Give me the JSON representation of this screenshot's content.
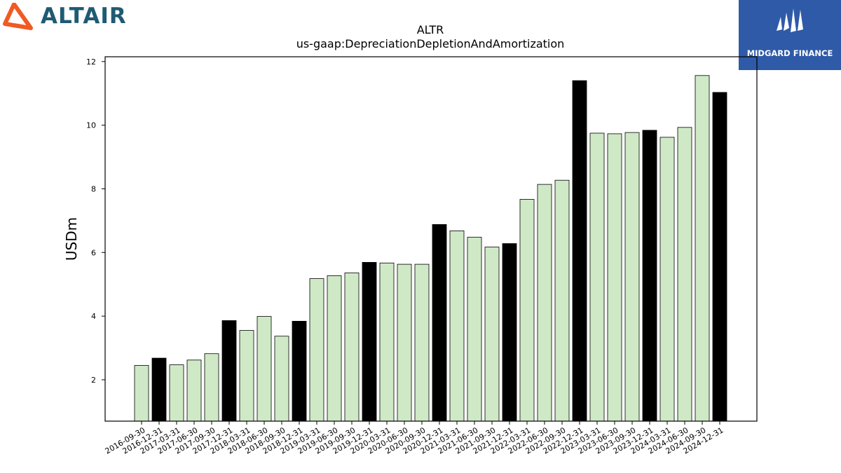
{
  "logos": {
    "left_wordmark": "ALTAIR",
    "right_caption": "MIDGARD FINANCE"
  },
  "colors": {
    "bar_light": "#cfe9c6",
    "bar_dark": "#000000",
    "bar_edge": "#000000",
    "altair_orange": "#f15a22",
    "altair_text": "#1f5a73",
    "midgard_bg": "#2f5aa8"
  },
  "chart_data": {
    "type": "bar",
    "title": "ALTR",
    "subtitle": "us-gaap:DepreciationDepletionAndAmortization",
    "xlabel": "",
    "ylabel": "USDm",
    "ylim": [
      0.7,
      12.15
    ],
    "yticks": [
      2,
      4,
      6,
      8,
      10,
      12
    ],
    "grid": false,
    "categories": [
      "2016-09-30",
      "2016-12-31",
      "2017-03-31",
      "2017-06-30",
      "2017-09-30",
      "2017-12-31",
      "2018-03-31",
      "2018-06-30",
      "2018-09-30",
      "2018-12-31",
      "2019-03-31",
      "2019-06-30",
      "2019-09-30",
      "2019-12-31",
      "2020-03-31",
      "2020-06-30",
      "2020-09-30",
      "2020-12-31",
      "2021-03-31",
      "2021-06-30",
      "2021-09-30",
      "2021-12-31",
      "2022-03-31",
      "2022-06-30",
      "2022-09-30",
      "2022-12-31",
      "2023-03-31",
      "2023-06-30",
      "2023-09-30",
      "2023-12-31",
      "2024-03-31",
      "2024-06-30",
      "2024-09-30",
      "2024-12-31"
    ],
    "values": [
      2.45,
      2.68,
      2.47,
      2.62,
      2.82,
      3.86,
      3.55,
      3.99,
      3.37,
      3.84,
      5.18,
      5.27,
      5.36,
      5.69,
      5.67,
      5.63,
      5.63,
      6.88,
      6.68,
      6.48,
      6.17,
      6.28,
      7.67,
      8.14,
      8.27,
      11.4,
      9.75,
      9.73,
      9.77,
      9.84,
      9.62,
      9.93,
      11.56,
      11.03
    ],
    "highlight": [
      false,
      true,
      false,
      false,
      false,
      true,
      false,
      false,
      false,
      true,
      false,
      false,
      false,
      true,
      false,
      false,
      false,
      true,
      false,
      false,
      false,
      true,
      false,
      false,
      false,
      true,
      false,
      false,
      false,
      true,
      false,
      false,
      false,
      true
    ]
  }
}
